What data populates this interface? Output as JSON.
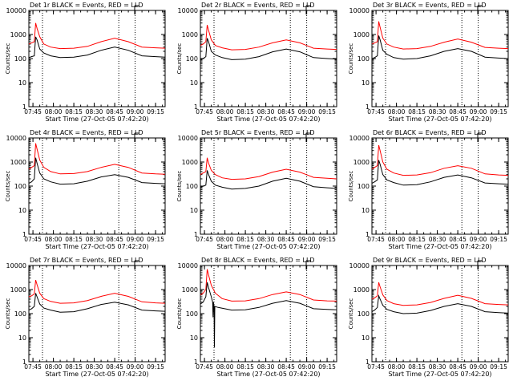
{
  "chart_data": [
    {
      "type": "line",
      "title": "Det 1r BLACK = Events, RED = LLD",
      "xlabel": "Start Time (27-Oct-05 07:42:20)",
      "ylabel": "Counts/sec",
      "ylog": true,
      "ylim": [
        1,
        10000
      ],
      "xticks": [
        "07:45",
        "08:00",
        "08:15",
        "08:30",
        "08:45",
        "09:00",
        "09:15"
      ],
      "yticks": [
        "1",
        "10",
        "100",
        "1000",
        "10000"
      ],
      "xlim_minutes_after_0742": [
        0,
        100
      ],
      "vertical_dotted_lines": [
        "07:52",
        "08:48",
        "09:00"
      ],
      "series": [
        {
          "color": "#ff0000",
          "x": [
            "07:42",
            "07:44",
            "07:46",
            "07:47",
            "07:48",
            "07:50",
            "07:53",
            "07:58",
            "08:05",
            "08:15",
            "08:25",
            "08:35",
            "08:45",
            "08:55",
            "09:05",
            "09:15",
            "09:22"
          ],
          "y": [
            400,
            450,
            500,
            3000,
            1800,
            800,
            400,
            300,
            260,
            270,
            320,
            500,
            700,
            500,
            300,
            280,
            270
          ]
        },
        {
          "color": "#000000",
          "x": [
            "07:42",
            "07:44",
            "07:46",
            "07:47",
            "07:48",
            "07:50",
            "07:53",
            "07:58",
            "08:05",
            "08:15",
            "08:25",
            "08:35",
            "08:45",
            "08:55",
            "09:05",
            "09:15",
            "09:22"
          ],
          "y": [
            110,
            120,
            130,
            800,
            600,
            250,
            170,
            130,
            110,
            115,
            140,
            220,
            300,
            220,
            130,
            120,
            115
          ]
        }
      ]
    },
    {
      "type": "line",
      "title": "Det 2r BLACK = Events, RED = LLD",
      "xlabel": "Start Time (27-Oct-05 07:42:20)",
      "ylabel": "Counts/sec",
      "ylog": true,
      "ylim": [
        1,
        10000
      ],
      "xticks": [
        "07:45",
        "08:00",
        "08:15",
        "08:30",
        "08:45",
        "09:00",
        "09:15"
      ],
      "yticks": [
        "1",
        "10",
        "100",
        "1000",
        "10000"
      ],
      "xlim_minutes_after_0742": [
        0,
        100
      ],
      "vertical_dotted_lines": [
        "07:52",
        "08:48",
        "09:00"
      ],
      "series": [
        {
          "color": "#ff0000",
          "x": [
            "07:42",
            "07:44",
            "07:46",
            "07:47",
            "07:48",
            "07:50",
            "07:53",
            "07:58",
            "08:05",
            "08:15",
            "08:25",
            "08:35",
            "08:45",
            "08:55",
            "09:05",
            "09:15",
            "09:22"
          ],
          "y": [
            350,
            400,
            500,
            2500,
            1500,
            600,
            350,
            280,
            230,
            240,
            300,
            450,
            600,
            450,
            270,
            250,
            240
          ]
        },
        {
          "color": "#000000",
          "x": [
            "07:42",
            "07:44",
            "07:46",
            "07:47",
            "07:48",
            "07:50",
            "07:53",
            "07:58",
            "08:05",
            "08:15",
            "08:25",
            "08:35",
            "08:45",
            "08:55",
            "09:05",
            "09:15",
            "09:22"
          ],
          "y": [
            90,
            100,
            120,
            700,
            500,
            200,
            140,
            110,
            90,
            95,
            120,
            190,
            250,
            190,
            110,
            100,
            95
          ]
        }
      ]
    },
    {
      "type": "line",
      "title": "Det 3r BLACK = Events, RED = LLD",
      "xlabel": "Start Time (27-Oct-05 07:42:20)",
      "ylabel": "Counts/sec",
      "ylog": true,
      "ylim": [
        1,
        10000
      ],
      "xticks": [
        "07:45",
        "08:00",
        "08:15",
        "08:30",
        "08:45",
        "09:00",
        "09:15"
      ],
      "yticks": [
        "1",
        "10",
        "100",
        "1000",
        "10000"
      ],
      "xlim_minutes_after_0742": [
        0,
        100
      ],
      "vertical_dotted_lines": [
        "07:52",
        "08:48",
        "09:00"
      ],
      "series": [
        {
          "color": "#ff0000",
          "x": [
            "07:42",
            "07:44",
            "07:46",
            "07:47",
            "07:48",
            "07:50",
            "07:53",
            "07:58",
            "08:05",
            "08:15",
            "08:25",
            "08:35",
            "08:45",
            "08:55",
            "09:05",
            "09:15",
            "09:22"
          ],
          "y": [
            400,
            450,
            500,
            3500,
            2000,
            700,
            400,
            300,
            250,
            260,
            320,
            480,
            650,
            480,
            290,
            270,
            260
          ]
        },
        {
          "color": "#000000",
          "x": [
            "07:42",
            "07:44",
            "07:46",
            "07:47",
            "07:48",
            "07:50",
            "07:53",
            "07:58",
            "08:05",
            "08:15",
            "08:25",
            "08:35",
            "08:45",
            "08:55",
            "09:05",
            "09:15",
            "09:22"
          ],
          "y": [
            100,
            110,
            130,
            900,
            600,
            220,
            150,
            110,
            95,
            100,
            130,
            200,
            260,
            200,
            115,
            105,
            100
          ]
        }
      ]
    },
    {
      "type": "line",
      "title": "Det 4r BLACK = Events, RED = LLD",
      "xlabel": "Start Time (27-Oct-05 07:42:20)",
      "ylabel": "Counts/sec",
      "ylog": true,
      "ylim": [
        1,
        10000
      ],
      "xticks": [
        "07:45",
        "08:00",
        "08:15",
        "08:30",
        "08:45",
        "09:00",
        "09:15"
      ],
      "yticks": [
        "1",
        "10",
        "100",
        "1000",
        "10000"
      ],
      "xlim_minutes_after_0742": [
        0,
        100
      ],
      "vertical_dotted_lines": [
        "07:52",
        "08:48",
        "09:00"
      ],
      "series": [
        {
          "color": "#ff0000",
          "x": [
            "07:42",
            "07:44",
            "07:46",
            "07:47",
            "07:48",
            "07:50",
            "07:53",
            "07:58",
            "08:05",
            "08:15",
            "08:25",
            "08:35",
            "08:45",
            "08:55",
            "09:05",
            "09:15",
            "09:22"
          ],
          "y": [
            500,
            600,
            700,
            6000,
            3500,
            1200,
            600,
            400,
            320,
            330,
            400,
            600,
            800,
            600,
            350,
            320,
            310
          ]
        },
        {
          "color": "#000000",
          "x": [
            "07:42",
            "07:44",
            "07:46",
            "07:47",
            "07:48",
            "07:50",
            "07:53",
            "07:58",
            "08:05",
            "08:15",
            "08:25",
            "08:35",
            "08:45",
            "08:55",
            "09:05",
            "09:15",
            "09:22"
          ],
          "y": [
            130,
            150,
            200,
            1500,
            900,
            350,
            200,
            150,
            120,
            125,
            160,
            240,
            300,
            230,
            140,
            130,
            125
          ]
        }
      ]
    },
    {
      "type": "line",
      "title": "Det 5r BLACK = Events, RED = LLD",
      "xlabel": "Start Time (27-Oct-05 07:42:20)",
      "ylabel": "Counts/sec",
      "ylog": true,
      "ylim": [
        1,
        10000
      ],
      "xticks": [
        "07:45",
        "08:00",
        "08:15",
        "08:30",
        "08:45",
        "09:00",
        "09:15"
      ],
      "yticks": [
        "1",
        "10",
        "100",
        "1000",
        "10000"
      ],
      "xlim_minutes_after_0742": [
        0,
        100
      ],
      "vertical_dotted_lines": [
        "07:52",
        "08:48",
        "09:00"
      ],
      "series": [
        {
          "color": "#ff0000",
          "x": [
            "07:42",
            "07:44",
            "07:46",
            "07:47",
            "07:48",
            "07:50",
            "07:53",
            "07:58",
            "08:05",
            "08:15",
            "08:25",
            "08:35",
            "08:45",
            "08:55",
            "09:05",
            "09:15",
            "09:22"
          ],
          "y": [
            300,
            350,
            400,
            1500,
            900,
            450,
            300,
            220,
            190,
            200,
            250,
            380,
            500,
            380,
            230,
            210,
            200
          ]
        },
        {
          "color": "#000000",
          "x": [
            "07:42",
            "07:44",
            "07:46",
            "07:47",
            "07:48",
            "07:50",
            "07:53",
            "07:58",
            "08:05",
            "08:15",
            "08:25",
            "08:35",
            "08:45",
            "08:55",
            "09:05",
            "09:15",
            "09:22"
          ],
          "y": [
            90,
            100,
            110,
            450,
            300,
            160,
            110,
            90,
            75,
            80,
            100,
            160,
            210,
            160,
            95,
            85,
            80
          ]
        }
      ]
    },
    {
      "type": "line",
      "title": "Det 6r BLACK = Events, RED = LLD",
      "xlabel": "Start Time (27-Oct-05 07:42:20)",
      "ylabel": "Counts/sec",
      "ylog": true,
      "ylim": [
        1,
        10000
      ],
      "xticks": [
        "07:45",
        "08:00",
        "08:15",
        "08:30",
        "08:45",
        "09:00",
        "09:15"
      ],
      "yticks": [
        "1",
        "10",
        "100",
        "1000",
        "10000"
      ],
      "xlim_minutes_after_0742": [
        0,
        100
      ],
      "vertical_dotted_lines": [
        "07:52",
        "08:48",
        "09:00"
      ],
      "series": [
        {
          "color": "#ff0000",
          "x": [
            "07:42",
            "07:44",
            "07:46",
            "07:47",
            "07:48",
            "07:50",
            "07:53",
            "07:58",
            "08:05",
            "08:15",
            "08:25",
            "08:35",
            "08:45",
            "08:55",
            "09:05",
            "09:15",
            "09:22"
          ],
          "y": [
            500,
            600,
            700,
            5000,
            3000,
            1000,
            500,
            350,
            280,
            290,
            360,
            550,
            700,
            550,
            320,
            290,
            280
          ]
        },
        {
          "color": "#000000",
          "x": [
            "07:42",
            "07:44",
            "07:46",
            "07:47",
            "07:48",
            "07:50",
            "07:53",
            "07:58",
            "08:05",
            "08:15",
            "08:25",
            "08:35",
            "08:45",
            "08:55",
            "09:05",
            "09:15",
            "09:22"
          ],
          "y": [
            130,
            150,
            180,
            1200,
            800,
            300,
            180,
            140,
            110,
            115,
            150,
            230,
            290,
            220,
            135,
            125,
            120
          ]
        }
      ]
    },
    {
      "type": "line",
      "title": "Det 7r BLACK = Events, RED = LLD",
      "xlabel": "Start Time (27-Oct-05 07:42:20)",
      "ylabel": "Counts/sec",
      "ylog": true,
      "ylim": [
        1,
        10000
      ],
      "xticks": [
        "07:45",
        "08:00",
        "08:15",
        "08:30",
        "08:45",
        "09:00",
        "09:15"
      ],
      "yticks": [
        "1",
        "10",
        "100",
        "1000",
        "10000"
      ],
      "xlim_minutes_after_0742": [
        0,
        100
      ],
      "vertical_dotted_lines": [
        "07:52",
        "08:48",
        "09:00"
      ],
      "series": [
        {
          "color": "#ff0000",
          "x": [
            "07:42",
            "07:44",
            "07:46",
            "07:47",
            "07:48",
            "07:50",
            "07:53",
            "07:58",
            "08:05",
            "08:15",
            "08:25",
            "08:35",
            "08:45",
            "08:55",
            "09:05",
            "09:15",
            "09:22"
          ],
          "y": [
            500,
            550,
            650,
            2500,
            1600,
            700,
            420,
            320,
            270,
            280,
            350,
            520,
            700,
            520,
            310,
            280,
            270
          ]
        },
        {
          "color": "#000000",
          "x": [
            "07:42",
            "07:44",
            "07:46",
            "07:47",
            "07:48",
            "07:50",
            "07:53",
            "07:58",
            "08:05",
            "08:15",
            "08:25",
            "08:35",
            "08:45",
            "08:55",
            "09:05",
            "09:15",
            "09:22"
          ],
          "y": [
            140,
            160,
            200,
            700,
            500,
            250,
            170,
            140,
            115,
            120,
            160,
            240,
            300,
            230,
            140,
            130,
            125
          ]
        }
      ]
    },
    {
      "type": "line",
      "title": "Det 8r BLACK = Events, RED = LLD",
      "xlabel": "Start Time (27-Oct-05 07:42:20)",
      "ylabel": "Counts/sec",
      "ylog": true,
      "ylim": [
        1,
        10000
      ],
      "xticks": [
        "07:45",
        "08:00",
        "08:15",
        "08:30",
        "08:45",
        "09:00",
        "09:15"
      ],
      "yticks": [
        "1",
        "10",
        "100",
        "1000",
        "10000"
      ],
      "xlim_minutes_after_0742": [
        0,
        100
      ],
      "vertical_dotted_lines": [
        "07:52",
        "08:48",
        "09:00"
      ],
      "series": [
        {
          "color": "#ff0000",
          "x": [
            "07:42",
            "07:44",
            "07:46",
            "07:47",
            "07:48",
            "07:50",
            "07:53",
            "07:58",
            "08:05",
            "08:15",
            "08:25",
            "08:35",
            "08:45",
            "08:55",
            "09:05",
            "09:15",
            "09:22"
          ],
          "y": [
            600,
            700,
            1000,
            7000,
            4000,
            1500,
            700,
            420,
            330,
            340,
            420,
            620,
            800,
            620,
            370,
            340,
            330
          ]
        },
        {
          "color": "#000000",
          "x": [
            "07:42",
            "07:44",
            "07:46",
            "07:47",
            "07:48",
            "07:50",
            "07:51",
            "07:51.3",
            "07:51.6",
            "07:52",
            "07:52.3",
            "07:52.6",
            "07:55",
            "08:05",
            "08:15",
            "08:25",
            "08:35",
            "08:45",
            "08:55",
            "09:05",
            "09:15",
            "09:22"
          ],
          "y": [
            250,
            300,
            500,
            2000,
            1200,
            500,
            300,
            70,
            300,
            200,
            4,
            200,
            180,
            140,
            145,
            180,
            270,
            350,
            270,
            160,
            150,
            145
          ]
        }
      ]
    },
    {
      "type": "line",
      "title": "Det 9r BLACK = Events, RED = LLD",
      "xlabel": "Start Time (27-Oct-05 07:42:20)",
      "ylabel": "Counts/sec",
      "ylog": true,
      "ylim": [
        1,
        10000
      ],
      "xticks": [
        "07:45",
        "08:00",
        "08:15",
        "08:30",
        "08:45",
        "09:00",
        "09:15"
      ],
      "yticks": [
        "1",
        "10",
        "100",
        "1000",
        "10000"
      ],
      "xlim_minutes_after_0742": [
        0,
        100
      ],
      "vertical_dotted_lines": [
        "07:52",
        "08:48",
        "09:00"
      ],
      "series": [
        {
          "color": "#ff0000",
          "x": [
            "07:42",
            "07:44",
            "07:46",
            "07:47",
            "07:48",
            "07:50",
            "07:53",
            "07:58",
            "08:05",
            "08:15",
            "08:25",
            "08:35",
            "08:45",
            "08:55",
            "09:05",
            "09:15",
            "09:22"
          ],
          "y": [
            400,
            450,
            550,
            2000,
            1300,
            600,
            350,
            260,
            220,
            230,
            290,
            430,
            580,
            430,
            260,
            240,
            230
          ]
        },
        {
          "color": "#000000",
          "x": [
            "07:42",
            "07:44",
            "07:46",
            "07:47",
            "07:48",
            "07:50",
            "07:53",
            "07:58",
            "08:05",
            "08:15",
            "08:25",
            "08:35",
            "08:45",
            "08:55",
            "09:05",
            "09:15",
            "09:22"
          ],
          "y": [
            120,
            140,
            180,
            550,
            400,
            220,
            150,
            120,
            100,
            105,
            135,
            200,
            260,
            200,
            120,
            110,
            105
          ]
        }
      ]
    }
  ]
}
